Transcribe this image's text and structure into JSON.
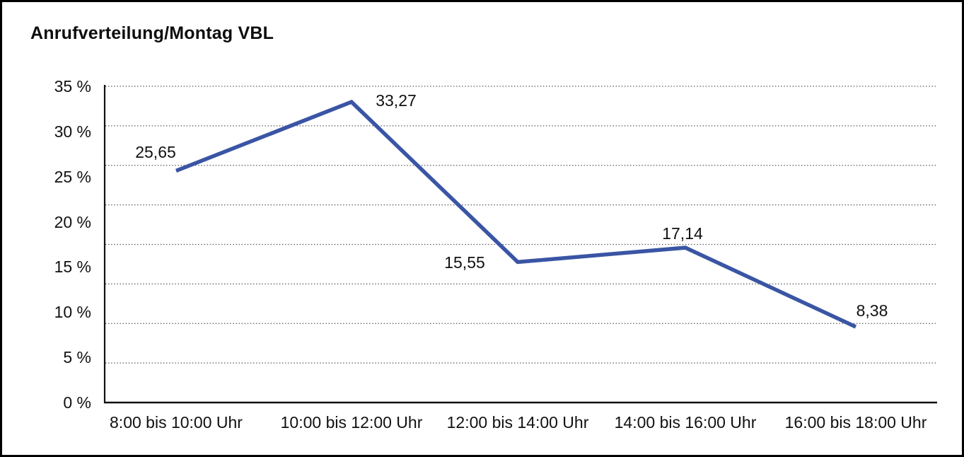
{
  "chart_data": {
    "type": "line",
    "title": "Anrufverteilung/Montag VBL",
    "categories": [
      "8:00 bis 10:00 Uhr",
      "10:00 bis 12:00 Uhr",
      "12:00 bis 14:00 Uhr",
      "14:00 bis 16:00 Uhr",
      "16:00 bis 18:00 Uhr"
    ],
    "series": [
      {
        "values": [
          25.65,
          33.27,
          15.55,
          17.14,
          8.38
        ],
        "value_labels": [
          "25,65",
          "33,27",
          "15,55",
          "17,14",
          "8,38"
        ],
        "color": "#3A55A4"
      }
    ],
    "xlabel": "",
    "ylabel": "",
    "ylim": [
      0,
      35
    ],
    "ytick_step": 5,
    "ytick_labels": [
      "0 %",
      "5 %",
      "10 %",
      "15 %",
      "20 %",
      "25 %",
      "30 %",
      "35 %"
    ],
    "grid": {
      "horizontal": true,
      "style": "dotted",
      "divisions": 8
    },
    "legend": {
      "visible": false
    },
    "axis_color": "#111111",
    "gridline_color": "#444444"
  }
}
